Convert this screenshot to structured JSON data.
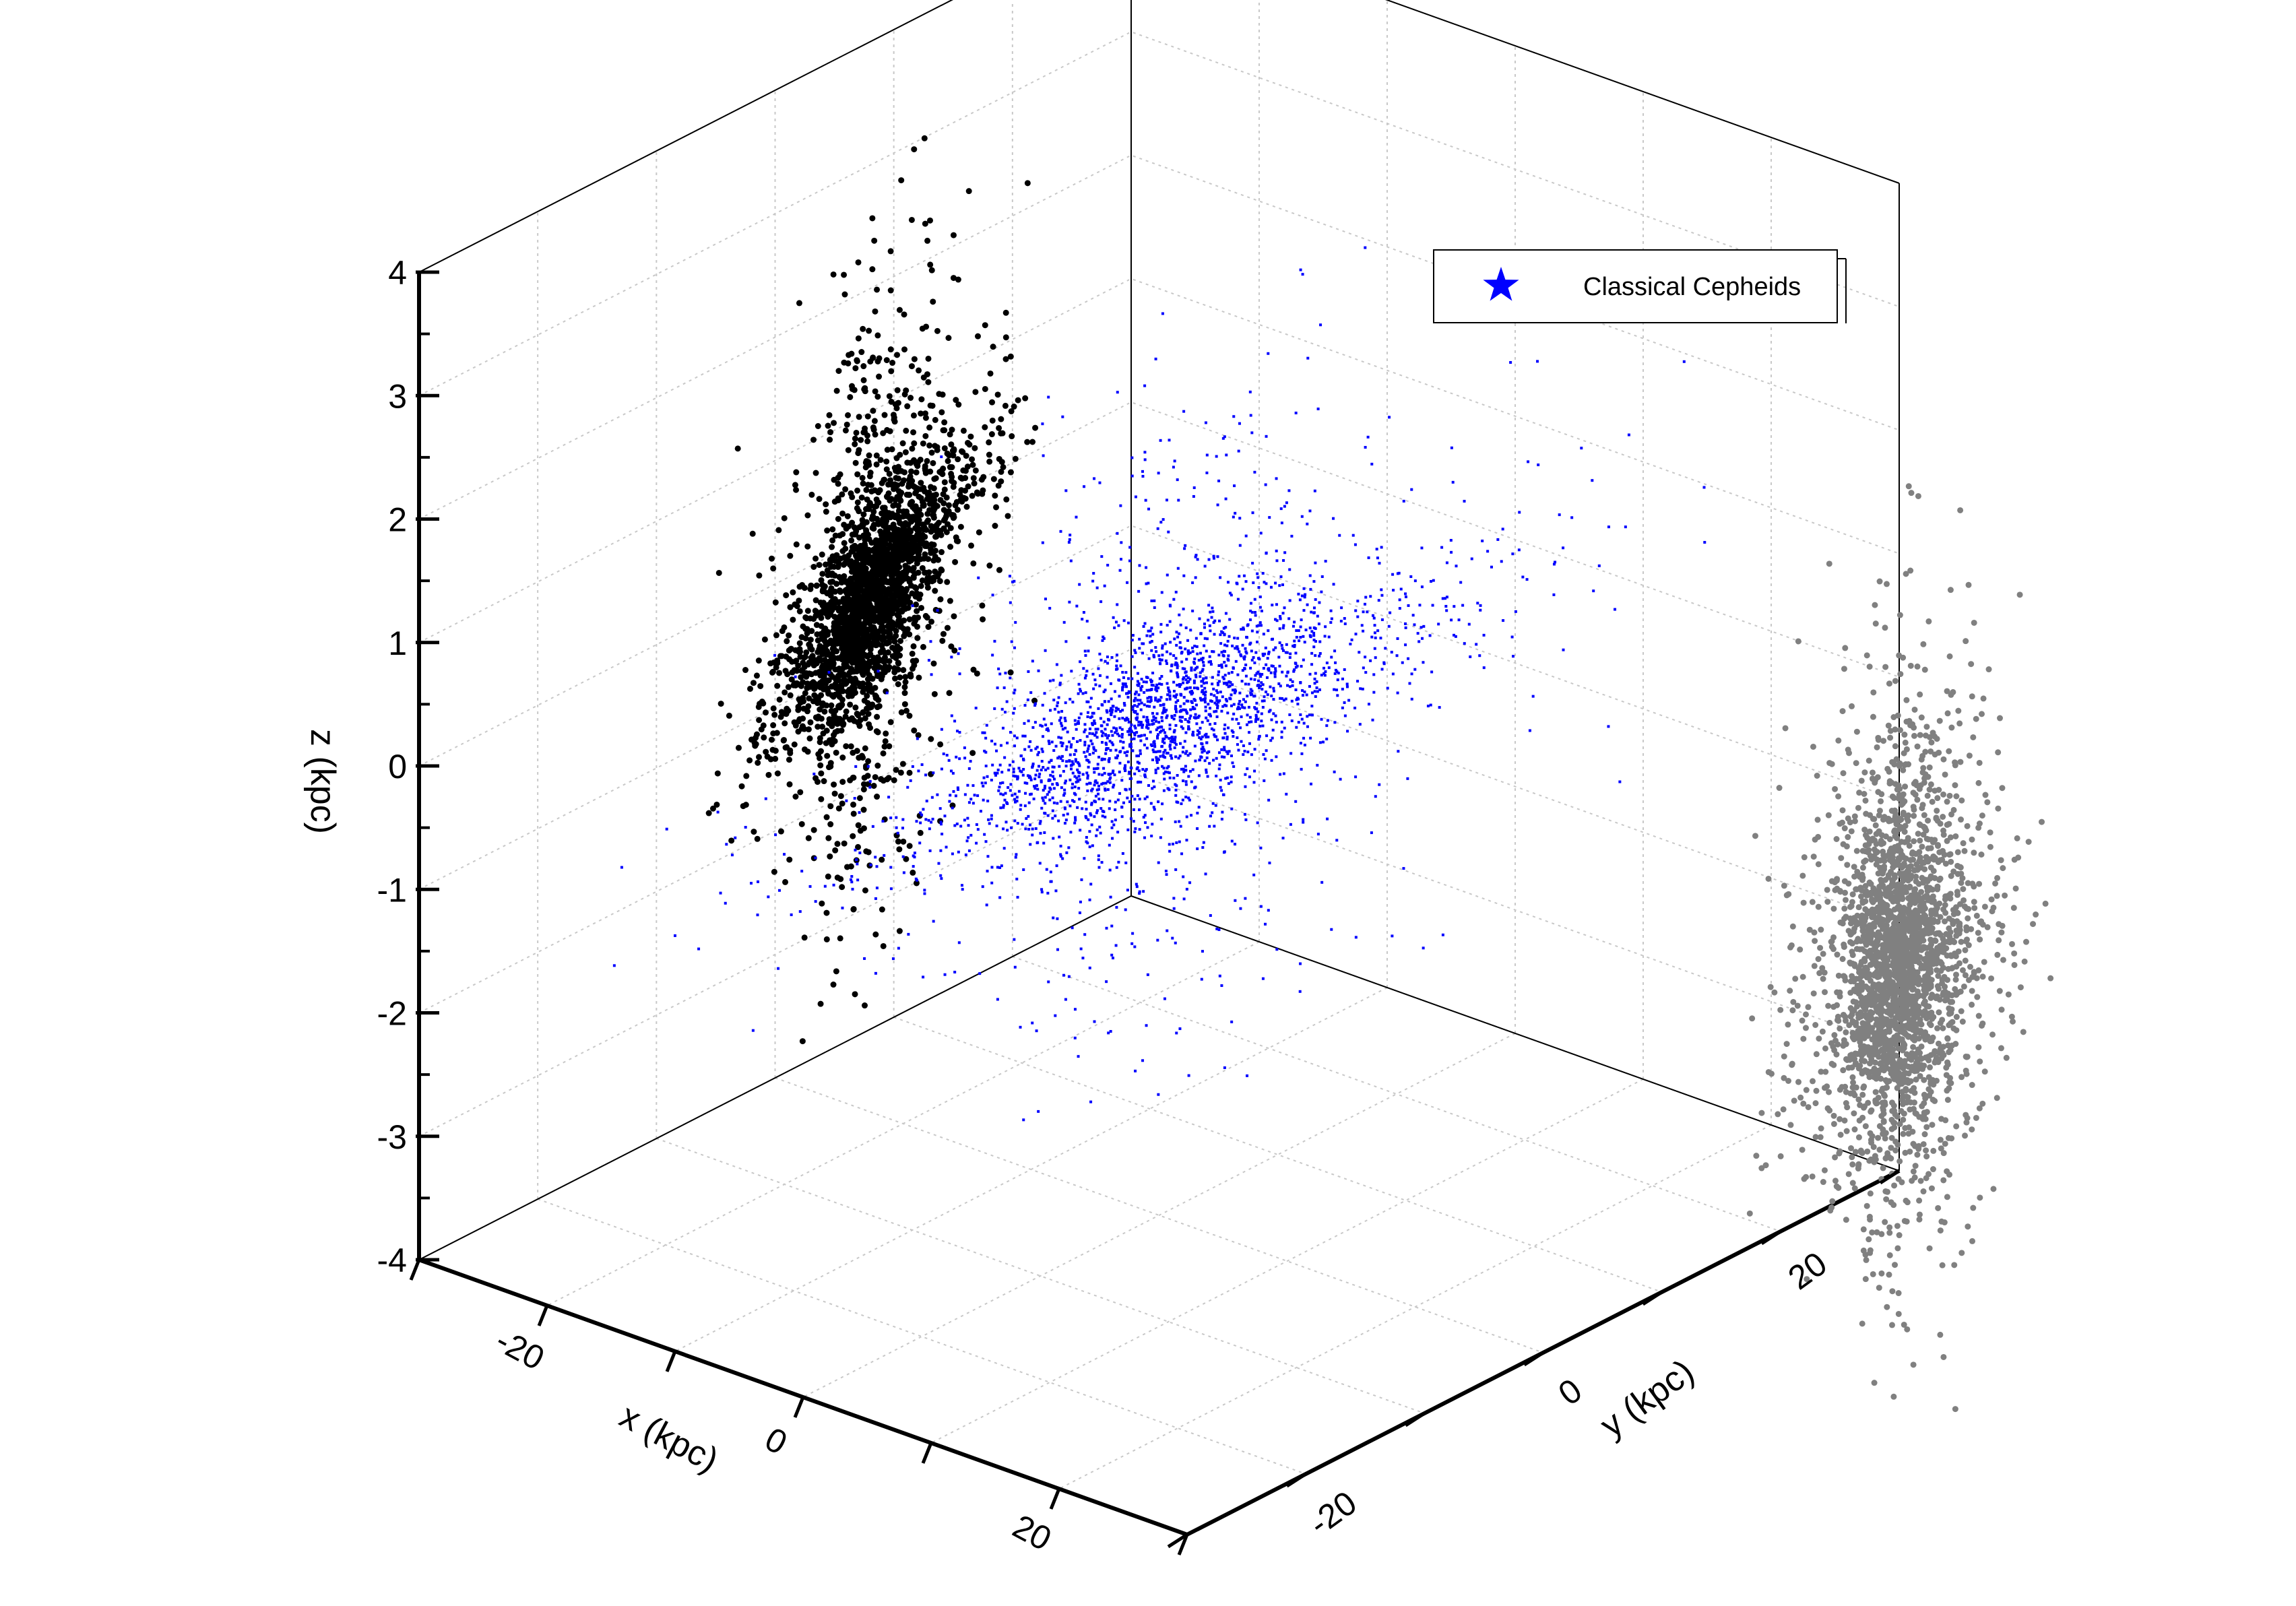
{
  "chart_data": {
    "type": "scatter",
    "projection": "3d",
    "xlabel": "x (kpc)",
    "ylabel": "y (kpc)",
    "zlabel": "z (kpc)",
    "xlim": [
      -30,
      30
    ],
    "ylim": [
      -30,
      30
    ],
    "zlim": [
      -4,
      4
    ],
    "x_ticks": [
      -20,
      0,
      20
    ],
    "y_ticks": [
      -20,
      0,
      20
    ],
    "z_ticks": [
      -4,
      -3,
      -2,
      -1,
      0,
      1,
      2,
      3,
      4
    ],
    "grid": true,
    "legend": {
      "position": "top-right",
      "entries": [
        "Classical Cepheids"
      ]
    },
    "series": [
      {
        "name": "Classical Cepheids",
        "color": "#0000ff",
        "marker": "star",
        "view": "3d"
      },
      {
        "view": "x-z projection",
        "color": "#000000",
        "marker": "dot"
      },
      {
        "view": "y-z projection",
        "color": "#808080",
        "marker": "dot"
      }
    ],
    "sample_points": [
      {
        "x": 0.5,
        "y": -1.0,
        "z": 0.05
      },
      {
        "x": 3.0,
        "y": 2.5,
        "z": 0.3
      },
      {
        "x": -4.0,
        "y": -2.0,
        "z": -0.3
      },
      {
        "x": 6.0,
        "y": 4.0,
        "z": 0.6
      },
      {
        "x": -8.0,
        "y": -6.0,
        "z": -0.5
      },
      {
        "x": 10.0,
        "y": 8.0,
        "z": 1.0
      },
      {
        "x": -12.0,
        "y": -4.0,
        "z": -0.8
      },
      {
        "x": 2.0,
        "y": -8.0,
        "z": 0.2
      },
      {
        "x": -2.0,
        "y": 6.0,
        "z": -0.1
      },
      {
        "x": 14.0,
        "y": 2.0,
        "z": 1.2
      },
      {
        "x": -15.0,
        "y": 3.0,
        "z": -1.2
      },
      {
        "x": 8.0,
        "y": -10.0,
        "z": 0.4
      },
      {
        "x": -6.0,
        "y": 10.0,
        "z": 0.0
      },
      {
        "x": 18.0,
        "y": 6.0,
        "z": 1.5
      },
      {
        "x": -18.0,
        "y": -8.0,
        "z": -1.6
      },
      {
        "x": 1.0,
        "y": 1.0,
        "z": 2.5
      },
      {
        "x": -1.0,
        "y": -3.0,
        "z": -2.4
      },
      {
        "x": 12.0,
        "y": -4.0,
        "z": -1.0
      },
      {
        "x": -10.0,
        "y": 12.0,
        "z": 1.1
      },
      {
        "x": 22.0,
        "y": 10.0,
        "z": 2.0
      }
    ]
  }
}
